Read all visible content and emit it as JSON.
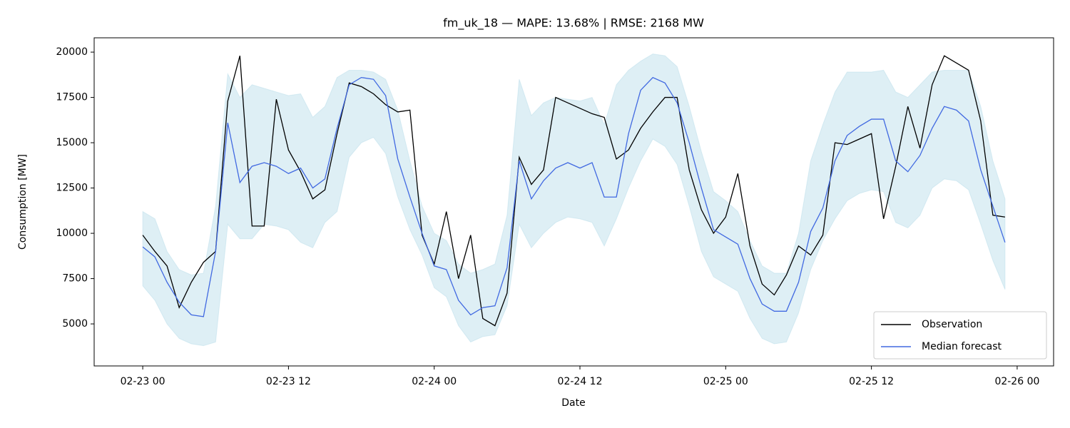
{
  "chart_data": {
    "type": "line",
    "title": "fm_uk_18 — MAPE: 13.68% | RMSE: 2168 MW",
    "xlabel": "Date",
    "ylabel": "Consumption [MW]",
    "x": [
      "02-23 00",
      "02-23 01",
      "02-23 02",
      "02-23 03",
      "02-23 04",
      "02-23 05",
      "02-23 06",
      "02-23 07",
      "02-23 08",
      "02-23 09",
      "02-23 10",
      "02-23 11",
      "02-23 12",
      "02-23 13",
      "02-23 14",
      "02-23 15",
      "02-23 16",
      "02-23 17",
      "02-23 18",
      "02-23 19",
      "02-23 20",
      "02-23 21",
      "02-23 22",
      "02-23 23",
      "02-24 00",
      "02-24 01",
      "02-24 02",
      "02-24 03",
      "02-24 04",
      "02-24 05",
      "02-24 06",
      "02-24 07",
      "02-24 08",
      "02-24 09",
      "02-24 10",
      "02-24 11",
      "02-24 12",
      "02-24 13",
      "02-24 14",
      "02-24 15",
      "02-24 16",
      "02-24 17",
      "02-24 18",
      "02-24 19",
      "02-24 20",
      "02-24 21",
      "02-24 22",
      "02-24 23",
      "02-25 00",
      "02-25 01",
      "02-25 02",
      "02-25 03",
      "02-25 04",
      "02-25 05",
      "02-25 06",
      "02-25 07",
      "02-25 08",
      "02-25 09",
      "02-25 10",
      "02-25 11",
      "02-25 12",
      "02-25 13",
      "02-25 14",
      "02-25 15",
      "02-25 16",
      "02-25 17",
      "02-25 18",
      "02-25 19",
      "02-25 20",
      "02-25 21",
      "02-25 22",
      "02-25 23"
    ],
    "band": {
      "color": "#add8e6",
      "upper": [
        11200,
        10800,
        9000,
        8000,
        7700,
        7800,
        11500,
        18800,
        17500,
        18200,
        18000,
        17800,
        17600,
        17700,
        16400,
        17000,
        18600,
        19000,
        19000,
        18900,
        18500,
        16800,
        14000,
        11500,
        10000,
        9600,
        8300,
        7800,
        8000,
        8300,
        11000,
        18500,
        16500,
        17200,
        17500,
        17400,
        17300,
        17500,
        16000,
        18200,
        19000,
        19500,
        19900,
        19800,
        19200,
        17000,
        14500,
        12300,
        11800,
        11200,
        9600,
        8200,
        7800,
        7800,
        10000,
        14000,
        16000,
        17800,
        18900,
        18900,
        18900,
        19000,
        17800,
        17500,
        18200,
        18900,
        19000,
        19000,
        19000,
        17000,
        14000,
        11900
      ],
      "lower": [
        7100,
        6300,
        5000,
        4200,
        3900,
        3800,
        4000,
        10500,
        9700,
        9700,
        10500,
        10400,
        10200,
        9500,
        9200,
        10600,
        11200,
        14200,
        15000,
        15300,
        14400,
        12000,
        10200,
        8800,
        7000,
        6500,
        4900,
        4000,
        4300,
        4400,
        6000,
        10500,
        9200,
        10000,
        10600,
        10900,
        10800,
        10600,
        9300,
        10800,
        12500,
        14000,
        15200,
        14800,
        13800,
        11500,
        9000,
        7600,
        7200,
        6800,
        5300,
        4200,
        3900,
        4000,
        5600,
        8000,
        9600,
        10800,
        11800,
        12200,
        12400,
        12300,
        10600,
        10300,
        11000,
        12500,
        13000,
        12900,
        12400,
        10500,
        8500,
        6900
      ]
    },
    "series": [
      {
        "name": "Observation",
        "color": "#000000",
        "values": [
          9900,
          9000,
          8200,
          5900,
          7300,
          8400,
          9000,
          17300,
          19800,
          10400,
          10400,
          17400,
          14600,
          13400,
          11900,
          12400,
          15500,
          18300,
          18100,
          17700,
          17100,
          16700,
          16800,
          9900,
          8300,
          11200,
          7500,
          9900,
          5300,
          4900,
          6700,
          14200,
          12700,
          13500,
          17500,
          17200,
          16900,
          16600,
          16400,
          14100,
          14600,
          15800,
          16700,
          17500,
          17500,
          13500,
          11300,
          10000,
          10900,
          13300,
          9300,
          7200,
          6600,
          7700,
          9300,
          8800,
          9900,
          15000,
          14900,
          15200,
          15500,
          10800,
          13700,
          17000,
          14700,
          18200,
          19800,
          19400,
          19000,
          16200,
          11000,
          10900
        ]
      },
      {
        "name": "Median forecast",
        "color": "#4169e1",
        "values": [
          9250,
          8700,
          7300,
          6200,
          5500,
          5400,
          9000,
          16100,
          12800,
          13700,
          13900,
          13700,
          13300,
          13600,
          12500,
          13000,
          15800,
          18200,
          18600,
          18500,
          17600,
          14100,
          12000,
          10000,
          8200,
          8000,
          6300,
          5500,
          5900,
          6000,
          8100,
          14000,
          11900,
          12900,
          13600,
          13900,
          13600,
          13900,
          12000,
          12000,
          15500,
          17900,
          18600,
          18300,
          17200,
          15000,
          12500,
          10200,
          9800,
          9400,
          7500,
          6100,
          5700,
          5700,
          7300,
          10100,
          11400,
          14000,
          15400,
          15900,
          16300,
          16300,
          14000,
          13400,
          14300,
          15800,
          17000,
          16800,
          16200,
          13500,
          11500,
          9500
        ]
      }
    ],
    "xlim": [
      "02-22 20",
      "02-26 03"
    ],
    "xticks": [
      "02-23 00",
      "02-23 12",
      "02-24 00",
      "02-24 12",
      "02-25 00",
      "02-25 12",
      "02-26 00"
    ],
    "ylim": [
      2680,
      20790
    ],
    "yticks": [
      5000,
      7500,
      10000,
      12500,
      15000,
      17500,
      20000
    ],
    "legend": "lower right"
  }
}
